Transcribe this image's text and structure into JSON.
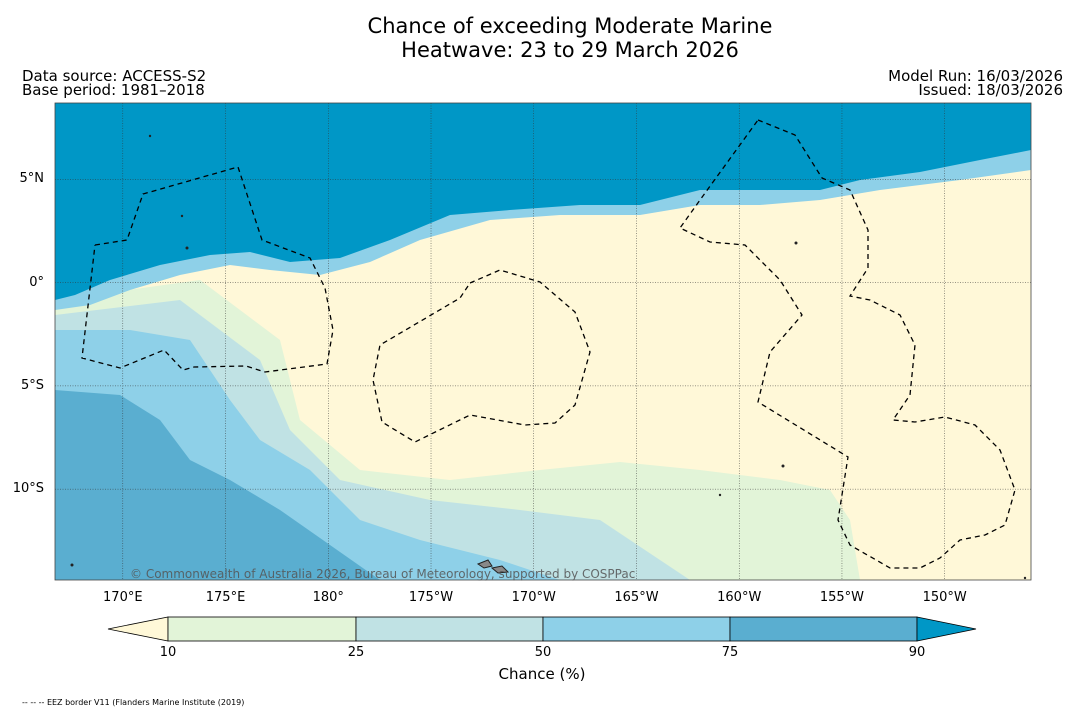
{
  "title_line1": "Chance of exceeding Moderate Marine",
  "title_line2": "Heatwave: 23 to 29 March 2026",
  "data_source": "Data source: ACCESS-S2",
  "base_period": "Base period: 1981–2018",
  "model_run": "Model Run: 16/03/2026",
  "issued": "Issued: 18/03/2026",
  "credit": "© Commonwealth of Australia 2026, Bureau of Meteorology, supported by COSPPac",
  "footnote": "-- -- -- EEZ border V11 (Flanders Marine Institute (2019)",
  "map": {
    "lat_labels": [
      "5°N",
      "0°",
      "5°S",
      "10°S"
    ],
    "lat_values": [
      5,
      0,
      -5,
      -10
    ],
    "lon_labels": [
      "170°E",
      "175°E",
      "180°",
      "175°W",
      "170°W",
      "165°W",
      "160°W",
      "155°W",
      "150°W"
    ],
    "lon_values": [
      170,
      175,
      180,
      185,
      190,
      195,
      200,
      205,
      210
    ],
    "lon_range": [
      166.7,
      214.2
    ],
    "lat_range": [
      -14.4,
      8.7
    ]
  },
  "colorbar": {
    "label": "Chance (%)",
    "ticks": [
      "10",
      "25",
      "50",
      "75",
      "90"
    ],
    "colors": [
      "#fff8d8",
      "#e2f4d8",
      "#c0e2e4",
      "#8ed0e8",
      "#5aaed0",
      "#0097c6"
    ]
  }
}
